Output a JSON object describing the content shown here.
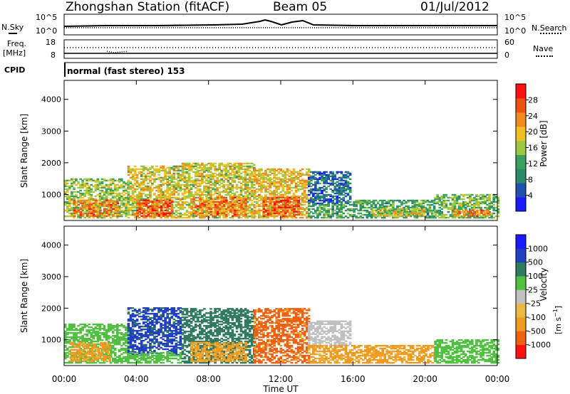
{
  "header": {
    "station": "Zhongshan Station (fitACF)",
    "beam": "Beam 05",
    "date": "01/Jul/2012"
  },
  "side_labels": {
    "nsky": "N.Sky",
    "nsearch": "N.Search",
    "freq": "Freq.",
    "freq_unit": "[MHz]",
    "nave": "Nave",
    "cpid": "CPID",
    "nsky_top": "10^5",
    "nsky_bottom": "10^0",
    "freq_top": "18",
    "freq_bottom": "8",
    "nave_top": "60",
    "nave_bottom": "0"
  },
  "cpid_text": "normal (fast stereo) 153",
  "x_axis": {
    "label": "Time UT",
    "ticks": [
      "00:00",
      "04:00",
      "08:00",
      "12:00",
      "16:00",
      "20:00",
      "00:00"
    ]
  },
  "colors": {
    "power": [
      "#1a1aff",
      "#2050b0",
      "#2a8a6a",
      "#3aa060",
      "#9ac840",
      "#f0c020",
      "#f08a20",
      "#f05010",
      "#ff1010"
    ],
    "velocity": [
      "#ff1010",
      "#f06010",
      "#f09a20",
      "#e8b840",
      "#c0c0c0",
      "#50c040",
      "#307a60",
      "#2040c0",
      "#1a1aff"
    ]
  },
  "chart_data": [
    {
      "type": "heatmap",
      "title": "Power",
      "ylabel": "Slant Range [km]",
      "xlabel": "Time UT",
      "xlim": [
        "00:00",
        "24:00"
      ],
      "ylim": [
        180,
        4600
      ],
      "y_ticks": [
        1000,
        2000,
        3000,
        4000
      ],
      "colorbar": {
        "label": "Power [dB]",
        "unit": "dB",
        "ticks": [
          4,
          8,
          12,
          16,
          20,
          24,
          28
        ],
        "range": [
          0,
          32
        ]
      },
      "bands": [
        {
          "t0": 0.0,
          "t1": 3.5,
          "r0": 250,
          "r1": 1500,
          "value": 16
        },
        {
          "t0": 0.5,
          "t1": 3.0,
          "r0": 300,
          "r1": 800,
          "value": 24
        },
        {
          "t0": 3.5,
          "t1": 6.5,
          "r0": 250,
          "r1": 1900,
          "value": 18
        },
        {
          "t0": 4.0,
          "t1": 6.0,
          "r0": 300,
          "r1": 800,
          "value": 26
        },
        {
          "t0": 6.5,
          "t1": 10.5,
          "r0": 250,
          "r1": 2000,
          "value": 18
        },
        {
          "t0": 7.0,
          "t1": 10.0,
          "r0": 300,
          "r1": 900,
          "value": 24
        },
        {
          "t0": 10.5,
          "t1": 13.5,
          "r0": 250,
          "r1": 1800,
          "value": 20
        },
        {
          "t0": 11.0,
          "t1": 13.0,
          "r0": 300,
          "r1": 900,
          "value": 26
        },
        {
          "t0": 13.5,
          "t1": 15.8,
          "r0": 700,
          "r1": 1700,
          "value": 7
        },
        {
          "t0": 13.5,
          "t1": 16.0,
          "r0": 250,
          "r1": 700,
          "value": 12
        },
        {
          "t0": 16.0,
          "t1": 20.5,
          "r0": 250,
          "r1": 800,
          "value": 12
        },
        {
          "t0": 17.0,
          "t1": 20.0,
          "r0": 300,
          "r1": 550,
          "value": 18
        },
        {
          "t0": 20.5,
          "t1": 24.0,
          "r0": 250,
          "r1": 1000,
          "value": 14
        },
        {
          "t0": 21.5,
          "t1": 23.5,
          "r0": 300,
          "r1": 500,
          "value": 24
        }
      ]
    },
    {
      "type": "heatmap",
      "title": "Velocity",
      "ylabel": "Slant Range [km]",
      "xlabel": "Time UT",
      "xlim": [
        "00:00",
        "24:00"
      ],
      "ylim": [
        180,
        4600
      ],
      "y_ticks": [
        1000,
        2000,
        3000,
        4000
      ],
      "colorbar": {
        "label": "Velocity [m s^-1]",
        "unit": "m s^-1",
        "ticks": [
          "-1000",
          "-500",
          "-100",
          "-25",
          "25",
          "100",
          "500",
          "1000"
        ]
      },
      "bands": [
        {
          "t0": 0.0,
          "t1": 3.5,
          "r0": 250,
          "r1": 1500,
          "value": 100
        },
        {
          "t0": 0.3,
          "t1": 2.5,
          "r0": 300,
          "r1": 900,
          "value": -100
        },
        {
          "t0": 3.5,
          "t1": 6.5,
          "r0": 500,
          "r1": 2000,
          "value": 1000
        },
        {
          "t0": 3.5,
          "t1": 6.5,
          "r0": 250,
          "r1": 600,
          "value": 100
        },
        {
          "t0": 6.5,
          "t1": 10.5,
          "r0": 250,
          "r1": 2000,
          "value": 500
        },
        {
          "t0": 7.0,
          "t1": 10.0,
          "r0": 300,
          "r1": 900,
          "value": -100
        },
        {
          "t0": 10.5,
          "t1": 13.5,
          "r0": 250,
          "r1": 2000,
          "value": -500
        },
        {
          "t0": 13.5,
          "t1": 15.8,
          "r0": 800,
          "r1": 1600,
          "value": 25
        },
        {
          "t0": 13.5,
          "t1": 20.5,
          "r0": 250,
          "r1": 800,
          "value": -100
        },
        {
          "t0": 20.5,
          "t1": 24.0,
          "r0": 250,
          "r1": 1000,
          "value": 100
        }
      ]
    }
  ]
}
